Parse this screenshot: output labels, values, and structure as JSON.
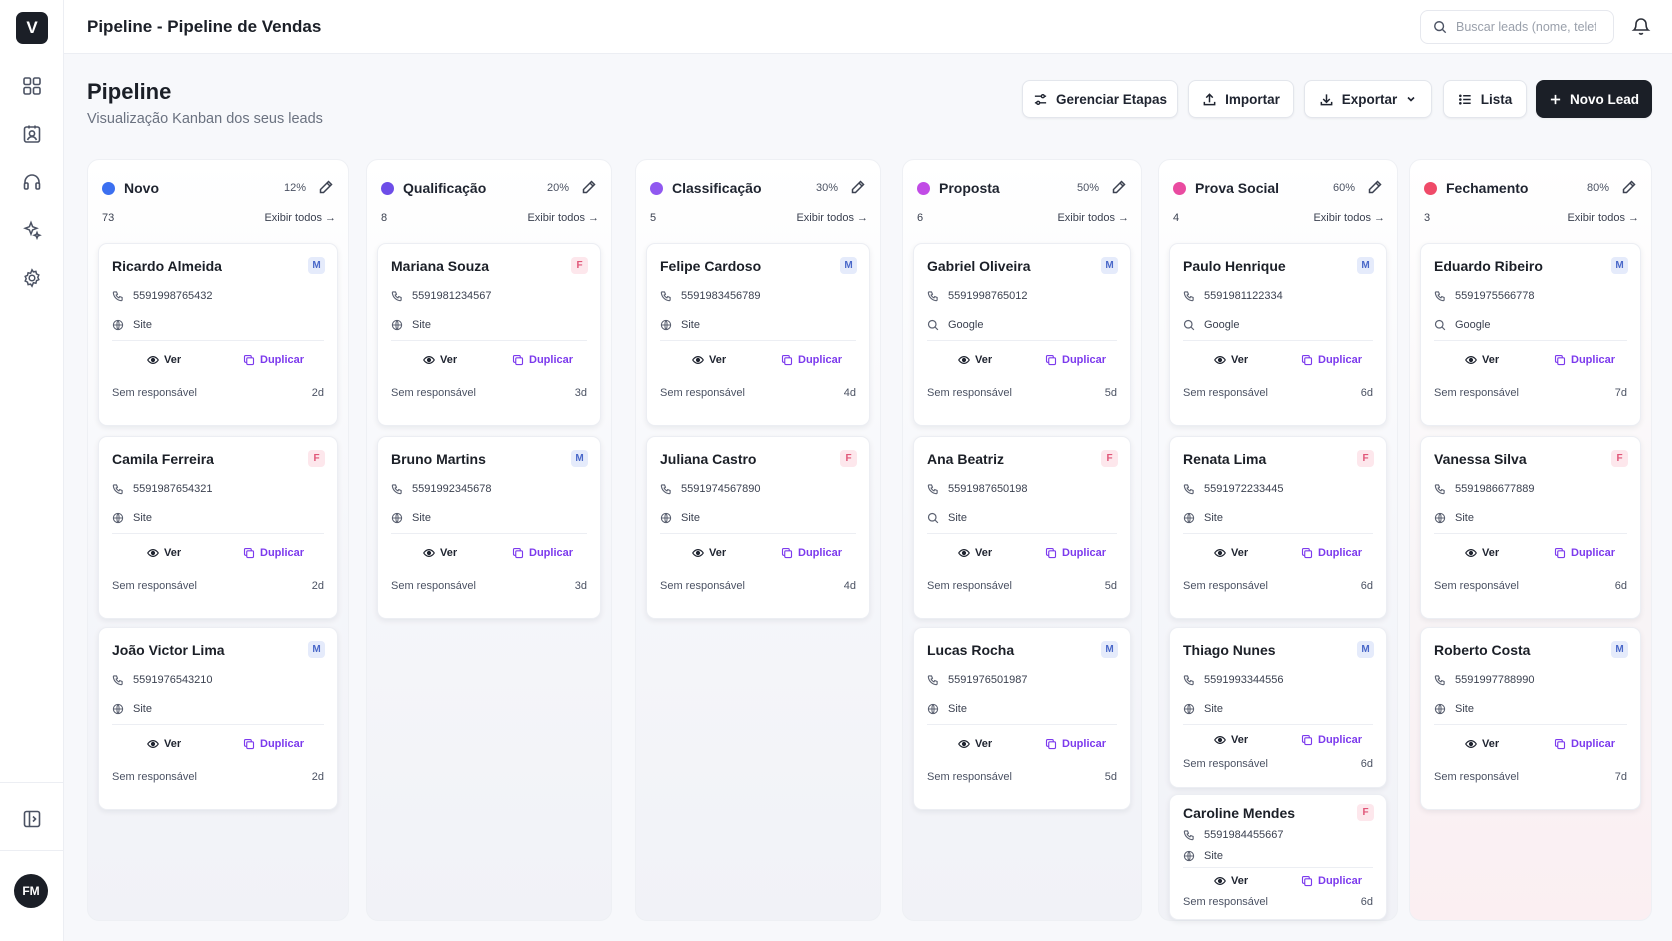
{
  "app": {
    "logo_letter": "V"
  },
  "topbar": {
    "title": "Pipeline - Pipeline de Vendas",
    "search_placeholder": "Buscar leads (nome, telef"
  },
  "sidebar": {
    "items": [
      "dashboard-icon",
      "contacts-icon",
      "headset-icon",
      "sparkles-icon",
      "settings-icon"
    ],
    "avatar": "FM"
  },
  "header": {
    "title": "Pipeline",
    "subtitle": "Visualização Kanban dos seus leads"
  },
  "toolbar": {
    "manage_stages": "Gerenciar Etapas",
    "import": "Importar",
    "export": "Exportar",
    "list": "Lista",
    "new_lead": "Novo Lead"
  },
  "labels": {
    "view": "Ver",
    "duplicate": "Duplicar",
    "show_all": "Exibir todos →"
  },
  "colors": {
    "accent_purple": "#7c3aed",
    "dark": "#1b1f27"
  },
  "columns": [
    {
      "name": "Novo",
      "percent": "12%",
      "count": "73",
      "color": "#3b6ff0",
      "cards": [
        {
          "name": "Ricardo Almeida",
          "gender": "M",
          "phone": "5591998765432",
          "source": "Site",
          "source_icon": "globe",
          "owner": "Sem responsável",
          "age": "2d"
        },
        {
          "name": "Camila Ferreira",
          "gender": "F",
          "phone": "5591987654321",
          "source": "Site",
          "source_icon": "globe",
          "owner": "Sem responsável",
          "age": "2d"
        },
        {
          "name": "João Victor Lima",
          "gender": "M",
          "phone": "5591976543210",
          "source": "Site",
          "source_icon": "globe",
          "owner": "Sem responsável",
          "age": "2d"
        }
      ]
    },
    {
      "name": "Qualificação",
      "percent": "20%",
      "count": "8",
      "color": "#6d4de8",
      "cards": [
        {
          "name": "Mariana Souza",
          "gender": "F",
          "phone": "5591981234567",
          "source": "Site",
          "source_icon": "globe",
          "owner": "Sem responsável",
          "age": "3d"
        },
        {
          "name": "Bruno Martins",
          "gender": "M",
          "phone": "5591992345678",
          "source": "Site",
          "source_icon": "globe",
          "owner": "Sem responsável",
          "age": "3d"
        }
      ]
    },
    {
      "name": "Classificação",
      "percent": "30%",
      "count": "5",
      "color": "#9058f0",
      "cards": [
        {
          "name": "Felipe Cardoso",
          "gender": "M",
          "phone": "5591983456789",
          "source": "Site",
          "source_icon": "globe",
          "owner": "Sem responsável",
          "age": "4d"
        },
        {
          "name": "Juliana Castro",
          "gender": "F",
          "phone": "5591974567890",
          "source": "Site",
          "source_icon": "globe",
          "owner": "Sem responsável",
          "age": "4d"
        }
      ]
    },
    {
      "name": "Proposta",
      "percent": "50%",
      "count": "6",
      "color": "#c14be6",
      "cards": [
        {
          "name": "Gabriel Oliveira",
          "gender": "M",
          "phone": "5591998765012",
          "source": "Google",
          "source_icon": "search",
          "owner": "Sem responsável",
          "age": "5d"
        },
        {
          "name": "Ana Beatriz",
          "gender": "F",
          "phone": "5591987650198",
          "source": "Site",
          "source_icon": "search",
          "owner": "Sem responsável",
          "age": "5d"
        },
        {
          "name": "Lucas Rocha",
          "gender": "M",
          "phone": "5591976501987",
          "source": "Site",
          "source_icon": "globe",
          "owner": "Sem responsável",
          "age": "5d"
        }
      ]
    },
    {
      "name": "Prova Social",
      "percent": "60%",
      "count": "4",
      "color": "#e94aa0",
      "cards": [
        {
          "name": "Paulo Henrique",
          "gender": "M",
          "phone": "5591981122334",
          "source": "Google",
          "source_icon": "search",
          "owner": "Sem responsável",
          "age": "6d"
        },
        {
          "name": "Renata Lima",
          "gender": "F",
          "phone": "5591972233445",
          "source": "Site",
          "source_icon": "globe",
          "owner": "Sem responsável",
          "age": "6d"
        },
        {
          "name": "Thiago Nunes",
          "gender": "M",
          "phone": "5591993344556",
          "source": "Site",
          "source_icon": "globe",
          "owner": "Sem responsável",
          "age": "6d"
        },
        {
          "name": "Caroline Mendes",
          "gender": "F",
          "phone": "5591984455667",
          "source": "Site",
          "source_icon": "globe",
          "owner": "Sem responsável",
          "age": "6d"
        }
      ]
    },
    {
      "name": "Fechamento",
      "percent": "80%",
      "count": "3",
      "color": "#ef4a68",
      "cards": [
        {
          "name": "Eduardo Ribeiro",
          "gender": "M",
          "phone": "5591975566778",
          "source": "Google",
          "source_icon": "search",
          "owner": "Sem responsável",
          "age": "7d"
        },
        {
          "name": "Vanessa Silva",
          "gender": "F",
          "phone": "5591986677889",
          "source": "Site",
          "source_icon": "globe",
          "owner": "Sem responsável",
          "age": "6d"
        },
        {
          "name": "Roberto Costa",
          "gender": "M",
          "phone": "5591997788990",
          "source": "Site",
          "source_icon": "globe",
          "owner": "Sem responsável",
          "age": "7d"
        }
      ]
    }
  ]
}
